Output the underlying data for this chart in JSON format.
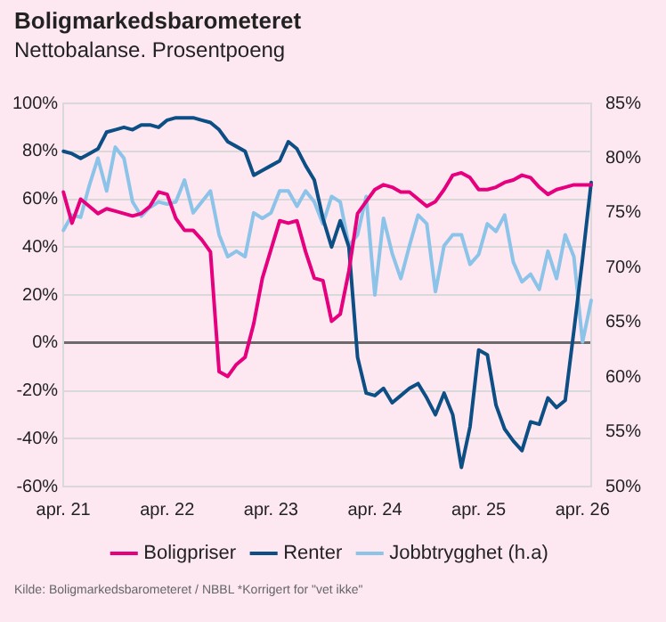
{
  "chart_data": {
    "type": "line",
    "title": "Boligmarkedsbarometeret",
    "subtitle": "Nettobalanse. Prosentpoeng",
    "annotations": [
      "Kilde: Boligmarkedsbarometeret / NBBL *Korrigert for \"vet ikke\""
    ],
    "categories": [
      "apr. 21",
      null,
      null,
      null,
      null,
      null,
      null,
      null,
      null,
      null,
      null,
      null,
      "apr. 22",
      null,
      null,
      null,
      null,
      null,
      null,
      null,
      null,
      null,
      null,
      null,
      "apr. 23",
      null,
      null,
      null,
      null,
      null,
      null,
      null,
      null,
      null,
      null,
      null,
      "apr. 24",
      null,
      null,
      null,
      null,
      null,
      null,
      null,
      null,
      null,
      null,
      null,
      "apr. 25",
      null,
      null,
      null,
      null,
      null,
      null,
      null,
      null,
      null,
      null,
      null,
      "apr. 26",
      null
    ],
    "series": [
      {
        "name": "Boligpriser",
        "color": "#e6007e",
        "values": [
          63,
          50,
          60,
          57,
          54,
          56,
          55,
          54,
          53,
          54,
          57,
          63,
          62,
          52,
          47,
          47,
          43,
          38,
          -12,
          -14,
          -9,
          -6,
          8,
          27,
          39,
          51,
          50,
          51,
          38,
          27,
          26,
          9,
          12,
          30,
          54,
          59,
          64,
          66,
          65,
          63,
          63,
          60,
          57,
          59,
          64,
          70,
          71,
          69,
          64,
          64,
          65,
          67,
          68,
          70,
          69,
          65,
          62,
          64,
          65,
          66,
          66,
          66
        ]
      },
      {
        "name": "Renter",
        "color": "#0d4f85",
        "values": [
          80,
          79,
          77,
          79,
          81,
          88,
          89,
          90,
          89,
          91,
          91,
          90,
          93,
          94,
          94,
          94,
          93,
          92,
          89,
          84,
          82,
          80,
          70,
          72,
          74,
          76,
          84,
          81,
          74,
          68,
          52,
          40,
          51,
          40,
          -6,
          -21,
          -22,
          -19,
          -25,
          -22,
          -19,
          -17,
          -23,
          -30,
          -21,
          -30,
          -52,
          -35,
          -3,
          -5,
          -26,
          -36,
          -41,
          -45,
          -33,
          -34,
          -23,
          -27,
          -24,
          5,
          35,
          67
        ]
      },
      {
        "name": "Jobbtrygghet (h.a)",
        "color": "#8cc3e8",
        "axis": "y2",
        "values": [
          73.4,
          74.8,
          74.6,
          77.5,
          80,
          77,
          81,
          80,
          76,
          74.7,
          75.5,
          76,
          75.8,
          76,
          78,
          75,
          76,
          77,
          73,
          71,
          71.5,
          71,
          75,
          74.5,
          75,
          77,
          77,
          75.6,
          77,
          76,
          74,
          76.5,
          76,
          72,
          73,
          76.5,
          67.5,
          74.5,
          71.3,
          69,
          72,
          74.8,
          74,
          67.8,
          72,
          73,
          73,
          70.3,
          71.2,
          74,
          73.3,
          74.8,
          70.5,
          68.7,
          69.4,
          68,
          71.5,
          69,
          73,
          71,
          63.2,
          67
        ]
      }
    ],
    "ylim": [
      -60,
      100
    ],
    "yticks": [
      {
        "value": -60,
        "label": "-60%"
      },
      {
        "value": -40,
        "label": "-40%"
      },
      {
        "value": -20,
        "label": "-20%"
      },
      {
        "value": 0,
        "label": "0%"
      },
      {
        "value": 20,
        "label": "20%"
      },
      {
        "value": 40,
        "label": "40%"
      },
      {
        "value": 60,
        "label": "60%"
      },
      {
        "value": 80,
        "label": "80%"
      },
      {
        "value": 100,
        "label": "100%"
      }
    ],
    "y2lim": [
      50,
      85
    ],
    "y2ticks": [
      {
        "value": 50,
        "label": "50%"
      },
      {
        "value": 55,
        "label": "55%"
      },
      {
        "value": 60,
        "label": "60%"
      },
      {
        "value": 65,
        "label": "65%"
      },
      {
        "value": 70,
        "label": "70%"
      },
      {
        "value": 75,
        "label": "75%"
      },
      {
        "value": 80,
        "label": "80%"
      },
      {
        "value": 85,
        "label": "85%"
      }
    ],
    "grid": "y",
    "legend": "bottom",
    "marker": "none",
    "line_style": "solid"
  }
}
